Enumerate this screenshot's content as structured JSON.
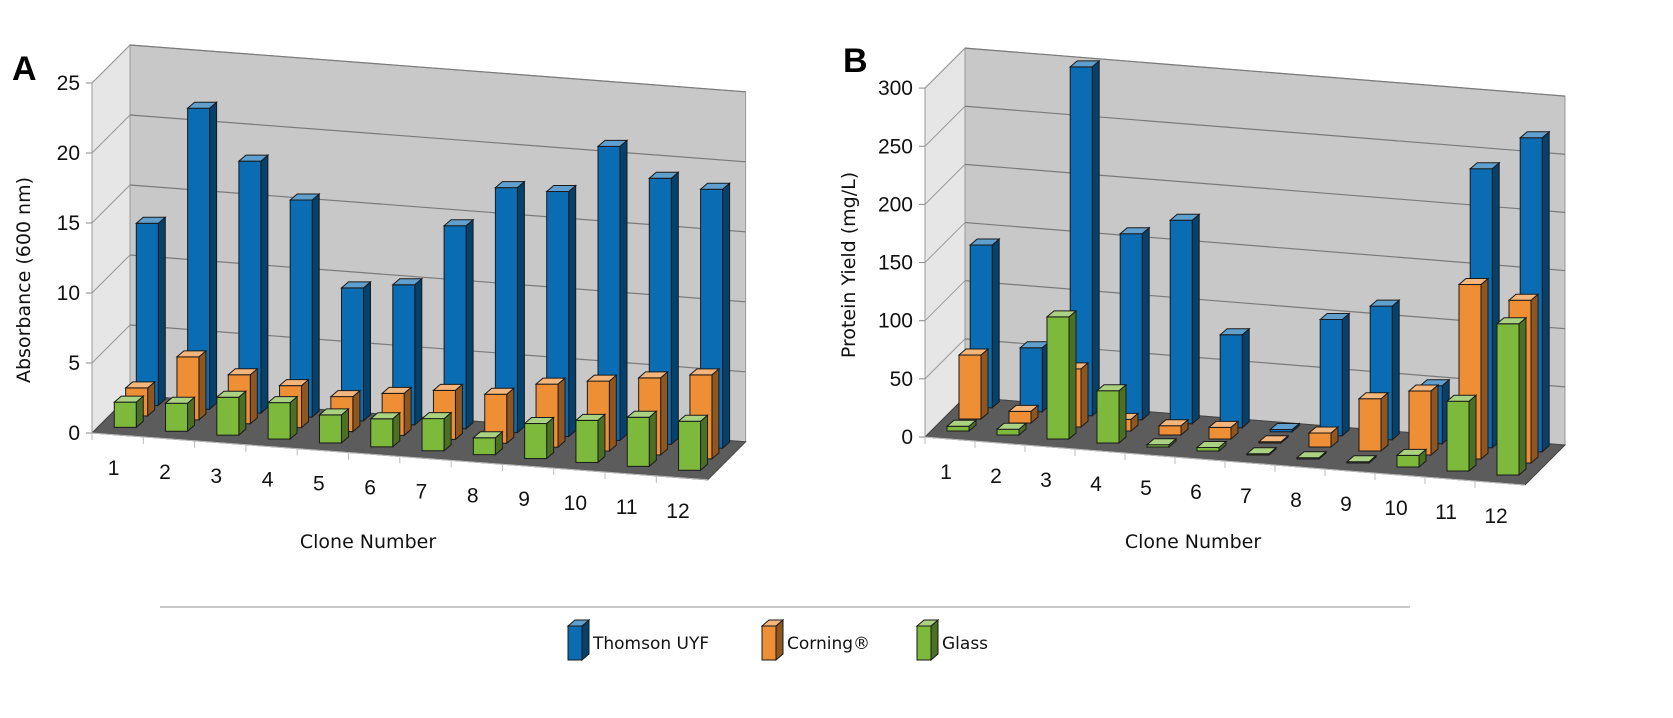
{
  "chart_data": [
    {
      "type": "bar",
      "panel_label": "A",
      "title": "",
      "xlabel": "Clone Number",
      "ylabel": "Absorbance (600 nm)",
      "ylim": [
        0,
        25
      ],
      "yticks": [
        "0",
        "5",
        "10",
        "15",
        "20",
        "25"
      ],
      "categories": [
        "1",
        "2",
        "3",
        "4",
        "5",
        "6",
        "7",
        "8",
        "9",
        "10",
        "11",
        "12"
      ],
      "grid": true,
      "style": "3d-clustered-depth",
      "series": [
        {
          "name": "Thomson UYF",
          "color": "#0a6db3",
          "values": [
            13,
            21.5,
            18,
            15.5,
            9.5,
            10,
            14.5,
            17.5,
            17.5,
            21,
            19,
            18.5
          ]
        },
        {
          "name": "Corning®",
          "color": "#ef8f35",
          "values": [
            2,
            4.5,
            3.5,
            3,
            2.5,
            3,
            3.5,
            3.5,
            4.5,
            5,
            5.5,
            6
          ]
        },
        {
          "name": "Glass",
          "color": "#7dba3c",
          "values": [
            1.8,
            2,
            2.7,
            2.6,
            2,
            2,
            2.3,
            1.2,
            2.5,
            3,
            3.5,
            3.5
          ]
        }
      ]
    },
    {
      "type": "bar",
      "panel_label": "B",
      "title": "",
      "xlabel": "Clone Number",
      "ylabel": "Protein Yield (mg/L)",
      "ylim": [
        0,
        300
      ],
      "yticks": [
        "0",
        "50",
        "100",
        "150",
        "200",
        "250",
        "300"
      ],
      "categories": [
        "1",
        "2",
        "3",
        "4",
        "5",
        "6",
        "7",
        "8",
        "9",
        "10",
        "11",
        "12"
      ],
      "grid": true,
      "style": "3d-clustered-depth",
      "series": [
        {
          "name": "Thomson UYF",
          "color": "#0a6db3",
          "values": [
            140,
            55,
            300,
            160,
            175,
            80,
            2,
            100,
            115,
            50,
            240,
            270
          ]
        },
        {
          "name": "Corning®",
          "color": "#ef8f35",
          "values": [
            55,
            10,
            50,
            10,
            8,
            10,
            1,
            12,
            45,
            55,
            150,
            140
          ]
        },
        {
          "name": "Glass",
          "color": "#7dba3c",
          "values": [
            4,
            5,
            105,
            45,
            2,
            3,
            1,
            1,
            1,
            10,
            60,
            130
          ]
        }
      ]
    }
  ],
  "legend": {
    "position": "bottom",
    "items": [
      {
        "label": "Thomson UYF",
        "color": "#0a6db3"
      },
      {
        "label": "Corning®",
        "color": "#ef8f35"
      },
      {
        "label": "Glass",
        "color": "#7dba3c"
      }
    ]
  }
}
